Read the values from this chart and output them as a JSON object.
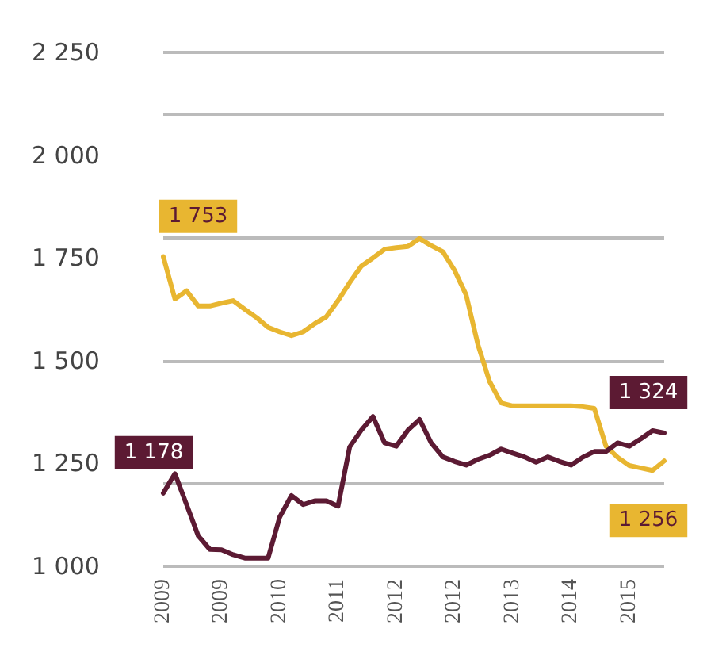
{
  "chart_data": {
    "type": "line",
    "categories": [
      "2009",
      null,
      null,
      null,
      null,
      "2009",
      null,
      null,
      null,
      null,
      "2010",
      null,
      null,
      null,
      null,
      "2011",
      null,
      null,
      null,
      null,
      "2012",
      null,
      null,
      null,
      null,
      "2012",
      null,
      null,
      null,
      null,
      "2013",
      null,
      null,
      null,
      null,
      "2014",
      null,
      null,
      null,
      null,
      "2015",
      null,
      null,
      null
    ],
    "ylim": [
      1000,
      2250
    ],
    "yticks": [
      {
        "value": 1000,
        "label": "1 000"
      },
      {
        "value": 1250,
        "label": "1 250"
      },
      {
        "value": 1500,
        "label": "1 500"
      },
      {
        "value": 1750,
        "label": "1 750"
      },
      {
        "value": 2000,
        "label": "2 000"
      },
      {
        "value": 2250,
        "label": "2 250"
      }
    ],
    "grid": "y",
    "marker": "none",
    "line_style": "solid",
    "series": [
      {
        "color": "#e8b631",
        "values": [
          1753,
          1650,
          1670,
          1633,
          1633,
          1640,
          1646,
          1625,
          1605,
          1581,
          1570,
          1561,
          1570,
          1590,
          1607,
          1646,
          1690,
          1730,
          1750,
          1771,
          1775,
          1778,
          1797,
          1780,
          1765,
          1720,
          1660,
          1540,
          1450,
          1397,
          1390,
          1390,
          1390,
          1390,
          1390,
          1390,
          1388,
          1384,
          1292,
          1265,
          1245,
          1239,
          1233,
          1256
        ],
        "value_labels": [
          "1 753",
          null,
          null,
          null,
          null,
          null,
          null,
          null,
          null,
          null,
          null,
          null,
          null,
          null,
          null,
          null,
          null,
          null,
          null,
          null,
          null,
          null,
          null,
          null,
          null,
          null,
          null,
          null,
          null,
          null,
          null,
          null,
          null,
          null,
          null,
          null,
          null,
          null,
          null,
          null,
          null,
          null,
          null,
          "1 256"
        ]
      },
      {
        "color": "#5c1a33",
        "values": [
          1178,
          1225,
          1150,
          1074,
          1041,
          1040,
          1028,
          1020,
          1020,
          1020,
          1120,
          1172,
          1150,
          1159,
          1159,
          1146,
          1290,
          1331,
          1364,
          1300,
          1292,
          1331,
          1357,
          1300,
          1266,
          1255,
          1246,
          1260,
          1270,
          1285,
          1275,
          1266,
          1253,
          1266,
          1255,
          1246,
          1265,
          1279,
          1279,
          1300,
          1292,
          1310,
          1330,
          1324
        ],
        "value_labels": [
          "1 178",
          null,
          null,
          null,
          null,
          null,
          null,
          null,
          null,
          null,
          null,
          null,
          null,
          null,
          null,
          null,
          null,
          null,
          null,
          null,
          null,
          null,
          null,
          null,
          null,
          null,
          null,
          null,
          null,
          null,
          null,
          null,
          null,
          null,
          null,
          null,
          null,
          null,
          null,
          null,
          null,
          null,
          null,
          "1 324"
        ]
      }
    ]
  }
}
